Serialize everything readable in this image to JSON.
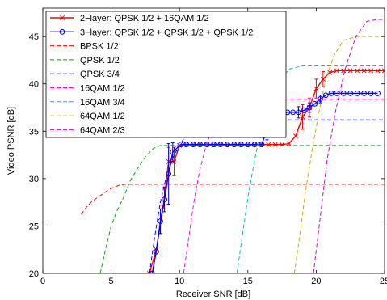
{
  "chart_data": {
    "type": "line",
    "title": "",
    "xlabel": "Receiver SNR [dB]",
    "ylabel": "Video PSNR [dB]",
    "xlim": [
      0,
      25
    ],
    "ylim": [
      20,
      48
    ],
    "xticks": [
      "0",
      "5",
      "10",
      "15",
      "20",
      "25"
    ],
    "yticks": [
      "20",
      "25",
      "30",
      "35",
      "40",
      "45"
    ],
    "grid": false,
    "legend_position": "top-left",
    "series": [
      {
        "name": "2−layer: QPSK 1/2 + 16QAM 1/2",
        "color": "#ff0000",
        "dash": "solid",
        "marker": "x",
        "errorbars": true,
        "points": [
          [
            7.8,
            20.0
          ],
          [
            8.3,
            22.5
          ],
          [
            8.8,
            27.0
          ],
          [
            9.2,
            31.8
          ],
          [
            9.6,
            31.8
          ],
          [
            10.0,
            33.5
          ],
          [
            10.5,
            33.6
          ],
          [
            11.0,
            33.6
          ],
          [
            11.5,
            33.6
          ],
          [
            12.0,
            33.6
          ],
          [
            12.5,
            33.6
          ],
          [
            13.0,
            33.6
          ],
          [
            13.5,
            33.6
          ],
          [
            14.0,
            33.6
          ],
          [
            14.5,
            33.6
          ],
          [
            15.0,
            33.6
          ],
          [
            15.5,
            33.6
          ],
          [
            16.0,
            33.6
          ],
          [
            16.5,
            33.6
          ],
          [
            17.0,
            33.6
          ],
          [
            17.5,
            33.6
          ],
          [
            18.0,
            33.7
          ],
          [
            18.5,
            34.5
          ],
          [
            19.0,
            36.5
          ],
          [
            19.5,
            37.5
          ],
          [
            20.0,
            39.5
          ],
          [
            20.5,
            40.5
          ],
          [
            21.0,
            41.2
          ],
          [
            21.5,
            41.4
          ],
          [
            22.0,
            41.4
          ],
          [
            22.5,
            41.4
          ],
          [
            23.0,
            41.4
          ],
          [
            23.5,
            41.4
          ],
          [
            24.0,
            41.4
          ],
          [
            24.5,
            41.4
          ],
          [
            25.0,
            41.4
          ]
        ],
        "errors": [
          [
            9.2,
            1.5
          ],
          [
            9.6,
            1.5
          ],
          [
            19.0,
            1.3
          ],
          [
            19.5,
            1.0
          ],
          [
            20.0,
            1.0
          ],
          [
            20.5,
            0.8
          ]
        ]
      },
      {
        "name": "3−layer: QPSK 1/2 + QPSK 1/2 + QPSK 1/2",
        "color": "#0000ff",
        "dash": "solid",
        "marker": "o",
        "errorbars": true,
        "points": [
          [
            8.0,
            20.0
          ],
          [
            8.3,
            22.3
          ],
          [
            8.6,
            25.5
          ],
          [
            8.9,
            27.8
          ],
          [
            9.2,
            30.5
          ],
          [
            9.5,
            32.8
          ],
          [
            9.8,
            33.2
          ],
          [
            10.1,
            33.6
          ],
          [
            10.5,
            33.6
          ],
          [
            11.0,
            33.6
          ],
          [
            11.5,
            33.6
          ],
          [
            12.0,
            33.6
          ],
          [
            12.5,
            33.6
          ],
          [
            13.0,
            33.6
          ],
          [
            13.5,
            33.6
          ],
          [
            14.0,
            33.6
          ],
          [
            14.5,
            33.6
          ],
          [
            15.0,
            33.6
          ],
          [
            15.5,
            33.6
          ],
          [
            16.0,
            33.6
          ],
          [
            16.4,
            35.1
          ],
          [
            16.8,
            36.2
          ],
          [
            17.1,
            36.6
          ],
          [
            17.5,
            36.8
          ],
          [
            17.9,
            37.0
          ],
          [
            18.3,
            37.0
          ],
          [
            18.7,
            37.0
          ],
          [
            19.1,
            37.2
          ],
          [
            19.5,
            37.5
          ],
          [
            19.9,
            37.9
          ],
          [
            20.3,
            38.4
          ],
          [
            20.7,
            38.8
          ],
          [
            21.1,
            39.0
          ],
          [
            21.5,
            39.0
          ],
          [
            22.0,
            39.0
          ],
          [
            22.5,
            39.0
          ],
          [
            23.0,
            39.0
          ],
          [
            23.5,
            39.0
          ],
          [
            24.0,
            39.0
          ],
          [
            24.5,
            39.0
          ]
        ],
        "errors": [
          [
            8.6,
            1.3
          ],
          [
            8.9,
            1.3
          ],
          [
            9.2,
            3.2
          ],
          [
            9.5,
            1.0
          ],
          [
            16.4,
            1.0
          ],
          [
            17.1,
            0.7
          ],
          [
            18.7,
            0.6
          ],
          [
            19.5,
            0.5
          ],
          [
            20.3,
            0.4
          ]
        ]
      },
      {
        "name": "BPSK 1/2",
        "color": "#ff0000",
        "dash": "dashed",
        "marker": "none",
        "points": [
          [
            2.8,
            26.2
          ],
          [
            3.2,
            27.0
          ],
          [
            3.6,
            27.6
          ],
          [
            4.0,
            28.0
          ],
          [
            4.4,
            28.4
          ],
          [
            4.8,
            28.8
          ],
          [
            5.2,
            29.1
          ],
          [
            5.6,
            29.3
          ],
          [
            6.0,
            29.4
          ],
          [
            7.0,
            29.4
          ],
          [
            10.0,
            29.4
          ],
          [
            15.0,
            29.4
          ],
          [
            20.0,
            29.4
          ],
          [
            25.0,
            29.4
          ]
        ]
      },
      {
        "name": "QPSK 1/2",
        "color": "#00aa00",
        "dash": "dashed",
        "marker": "none",
        "points": [
          [
            4.2,
            20.0
          ],
          [
            4.6,
            22.6
          ],
          [
            5.0,
            25.0
          ],
          [
            5.4,
            26.5
          ],
          [
            5.9,
            28.0
          ],
          [
            6.4,
            29.8
          ],
          [
            6.9,
            31.0
          ],
          [
            7.5,
            32.3
          ],
          [
            8.1,
            33.2
          ],
          [
            8.6,
            33.5
          ],
          [
            9.5,
            33.5
          ],
          [
            15.0,
            33.5
          ],
          [
            20.0,
            33.5
          ],
          [
            25.0,
            33.5
          ]
        ]
      },
      {
        "name": "QPSK 3/4",
        "color": "#0000ff",
        "dash": "dashed",
        "marker": "none",
        "points": [
          [
            7.8,
            20.0
          ],
          [
            8.2,
            24.0
          ],
          [
            8.6,
            27.5
          ],
          [
            9.0,
            30.0
          ],
          [
            9.6,
            32.5
          ],
          [
            10.3,
            34.2
          ],
          [
            11.0,
            35.5
          ],
          [
            11.8,
            36.1
          ],
          [
            12.5,
            36.2
          ],
          [
            15.0,
            36.2
          ],
          [
            20.0,
            36.2
          ],
          [
            25.0,
            36.2
          ]
        ]
      },
      {
        "name": "16QAM 1/2",
        "color": "#ff00ff",
        "dash": "dashed",
        "marker": "none",
        "points": [
          [
            10.3,
            20.0
          ],
          [
            10.7,
            24.0
          ],
          [
            11.1,
            28.0
          ],
          [
            11.5,
            31.0
          ],
          [
            12.0,
            33.8
          ],
          [
            12.6,
            35.8
          ],
          [
            13.2,
            37.2
          ],
          [
            14.0,
            38.1
          ],
          [
            15.0,
            38.4
          ],
          [
            20.0,
            38.4
          ],
          [
            25.0,
            38.4
          ]
        ]
      },
      {
        "name": "16QAM 3/4",
        "color": "#00bcd4",
        "dash": "dashed",
        "marker": "none",
        "points": [
          [
            14.2,
            20.0
          ],
          [
            14.6,
            24.0
          ],
          [
            15.0,
            28.0
          ],
          [
            15.5,
            32.0
          ],
          [
            16.0,
            35.5
          ],
          [
            16.6,
            38.5
          ],
          [
            17.3,
            40.5
          ],
          [
            18.1,
            41.6
          ],
          [
            19.0,
            41.9
          ],
          [
            22.0,
            41.9
          ],
          [
            25.0,
            41.9
          ]
        ]
      },
      {
        "name": "64QAM 1/2",
        "color": "#b8b800",
        "dash": "dashed",
        "marker": "none",
        "points": [
          [
            18.4,
            20.0
          ],
          [
            18.8,
            24.0
          ],
          [
            19.2,
            28.5
          ],
          [
            19.7,
            33.0
          ],
          [
            20.2,
            37.0
          ],
          [
            20.7,
            40.5
          ],
          [
            21.3,
            43.0
          ],
          [
            22.0,
            44.6
          ],
          [
            23.0,
            45.0
          ],
          [
            25.0,
            45.0
          ]
        ]
      },
      {
        "name": "64QAM 2/3",
        "color": "#d000d0",
        "dash": "dashed",
        "marker": "none",
        "points": [
          [
            19.8,
            20.0
          ],
          [
            20.3,
            26.0
          ],
          [
            20.8,
            32.0
          ],
          [
            21.4,
            37.0
          ],
          [
            22.1,
            41.5
          ],
          [
            22.9,
            45.0
          ],
          [
            23.7,
            46.6
          ],
          [
            24.5,
            46.8
          ],
          [
            25.0,
            46.8
          ]
        ]
      }
    ]
  }
}
